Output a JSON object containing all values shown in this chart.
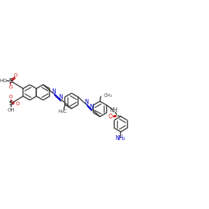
{
  "bg_color": "#ffffff",
  "bond_color": "#404040",
  "azo_color": "#0000cc",
  "red_color": "#cc0000",
  "blue_color": "#0000cc",
  "lw": 1.1,
  "dbo": 0.008,
  "r": 0.038,
  "figsize": [
    3.0,
    3.0
  ],
  "dpi": 100,
  "xlim": [
    0,
    1
  ],
  "ylim": [
    0,
    1
  ]
}
